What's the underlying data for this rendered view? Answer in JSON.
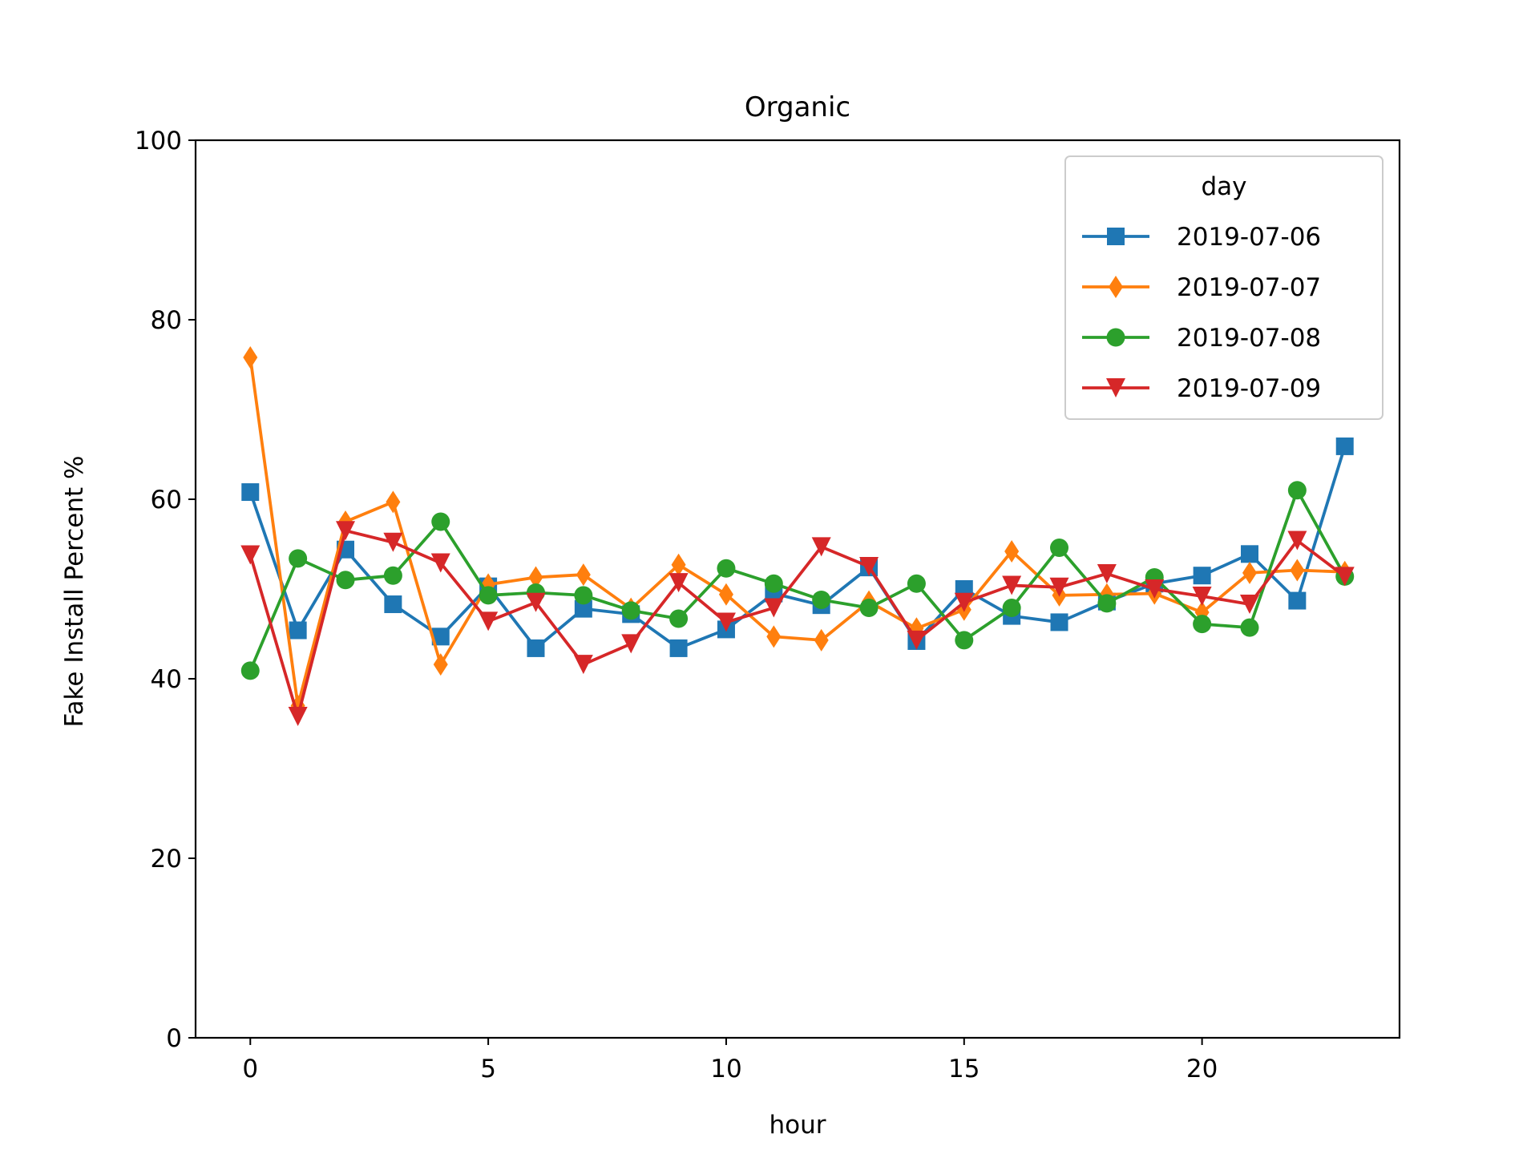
{
  "chart_data": {
    "type": "line",
    "title": "Organic",
    "xlabel": "hour",
    "ylabel": "Fake Install Percent %",
    "xlim": [
      -1.15,
      24.15
    ],
    "ylim": [
      0,
      100
    ],
    "x_ticks": [
      0,
      5,
      10,
      15,
      20
    ],
    "y_ticks": [
      0,
      20,
      40,
      60,
      80,
      100
    ],
    "grid": false,
    "legend": {
      "title": "day",
      "position": "top-right"
    },
    "x": [
      0,
      1,
      2,
      3,
      4,
      5,
      6,
      7,
      8,
      9,
      10,
      11,
      12,
      13,
      14,
      15,
      16,
      17,
      18,
      19,
      20,
      21,
      22,
      23
    ],
    "series": [
      {
        "name": "2019-07-06",
        "color": "#1f77b4",
        "marker": "square",
        "values": [
          60.8,
          45.4,
          54.4,
          48.3,
          44.7,
          50.3,
          43.4,
          47.8,
          47.2,
          43.4,
          45.5,
          49.5,
          48.2,
          52.4,
          44.2,
          50.0,
          47.0,
          46.3,
          48.6,
          50.6,
          51.5,
          53.9,
          48.7,
          65.9
        ]
      },
      {
        "name": "2019-07-07",
        "color": "#ff7f0e",
        "marker": "diamond",
        "values": [
          75.8,
          37.0,
          57.5,
          59.7,
          41.6,
          50.5,
          51.3,
          51.6,
          47.8,
          52.7,
          49.4,
          44.7,
          44.3,
          48.6,
          45.6,
          47.7,
          54.2,
          49.3,
          49.4,
          49.5,
          47.4,
          51.8,
          52.1,
          51.9
        ]
      },
      {
        "name": "2019-07-08",
        "color": "#2ca02c",
        "marker": "circle",
        "values": [
          40.9,
          53.4,
          51.0,
          51.5,
          57.5,
          49.3,
          49.6,
          49.3,
          47.6,
          46.7,
          52.3,
          50.6,
          48.8,
          47.9,
          50.6,
          44.3,
          47.9,
          54.6,
          48.4,
          51.3,
          46.1,
          45.7,
          61.0,
          51.4
        ]
      },
      {
        "name": "2019-07-09",
        "color": "#d62728",
        "marker": "triangle-down",
        "values": [
          53.8,
          35.8,
          56.5,
          55.2,
          52.9,
          46.4,
          48.5,
          41.6,
          43.9,
          50.7,
          46.3,
          47.9,
          54.7,
          52.5,
          44.3,
          48.5,
          50.4,
          50.2,
          51.7,
          50.0,
          49.2,
          48.3,
          55.4,
          51.4
        ]
      }
    ]
  }
}
